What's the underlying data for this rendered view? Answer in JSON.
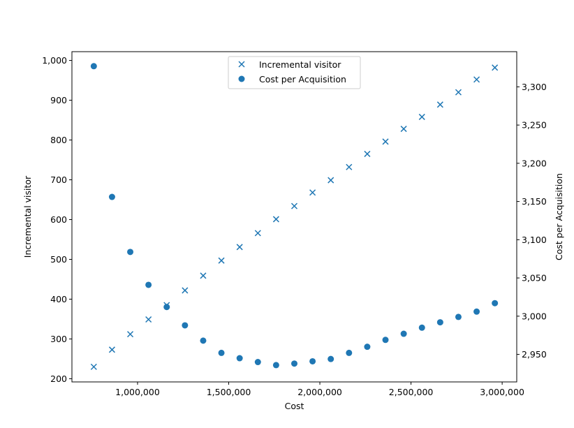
{
  "chart_data": {
    "type": "scatter",
    "title": "",
    "xlabel": "Cost",
    "ylabel_left": "Incremental visitor",
    "ylabel_right": "Cost per Acquisition",
    "xlim": [
      640000,
      3080000
    ],
    "ylim_left": [
      192,
      1022
    ],
    "ylim_right": [
      2914,
      3346
    ],
    "x_ticks": [
      1000000,
      1500000,
      2000000,
      2500000,
      3000000
    ],
    "x_tick_labels": [
      "1,000,000",
      "1,500,000",
      "2,000,000",
      "2,500,000",
      "3,000,000"
    ],
    "y_left_ticks": [
      200,
      300,
      400,
      500,
      600,
      700,
      800,
      900,
      1000
    ],
    "y_left_tick_labels": [
      "200",
      "300",
      "400",
      "500",
      "600",
      "700",
      "800",
      "900",
      "1,000"
    ],
    "y_right_ticks": [
      2950,
      3000,
      3050,
      3100,
      3150,
      3200,
      3250,
      3300
    ],
    "y_right_tick_labels": [
      "2,950",
      "3,000",
      "3,050",
      "3,100",
      "3,150",
      "3,200",
      "3,250",
      "3,300"
    ],
    "grid": false,
    "legend_position": "upper-center",
    "color": "#1f77b4",
    "x": [
      760000,
      860000,
      960000,
      1060000,
      1160000,
      1260000,
      1360000,
      1460000,
      1560000,
      1660000,
      1760000,
      1860000,
      1960000,
      2060000,
      2160000,
      2260000,
      2360000,
      2460000,
      2560000,
      2660000,
      2760000,
      2860000,
      2960000
    ],
    "series": [
      {
        "name": "Incremental visitor",
        "axis": "left",
        "marker": "x",
        "values": [
          230,
          273,
          312,
          349,
          385,
          422,
          459,
          497,
          531,
          566,
          601,
          634,
          668,
          699,
          732,
          765,
          796,
          828,
          858,
          889,
          920,
          952,
          982
        ]
      },
      {
        "name": "Cost per Acquisition",
        "axis": "right",
        "marker": "circle",
        "values": [
          3327,
          3156,
          3084,
          3041,
          3012,
          2988,
          2968,
          2952,
          2945,
          2940,
          2936,
          2938,
          2941,
          2944,
          2952,
          2960,
          2969,
          2977,
          2985,
          2992,
          2999,
          3006,
          3017
        ]
      }
    ]
  }
}
